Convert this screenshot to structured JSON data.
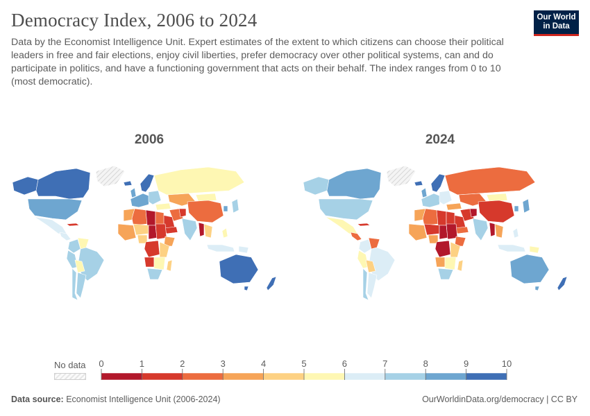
{
  "header": {
    "title": "Democracy Index, 2006 to 2024",
    "subtitle": "Data by the Economist Intelligence Unit. Expert estimates of the extent to which citizens can choose their political leaders in free and fair elections, enjoy civil liberties, prefer democracy over other political systems, can and do participate in politics, and have a functioning government that acts on their behalf. The index ranges from 0 to 10 (most democratic).",
    "logo_line1": "Our World",
    "logo_line2": "in Data"
  },
  "maps": [
    {
      "year": "2006"
    },
    {
      "year": "2024"
    }
  ],
  "legend": {
    "no_data_label": "No data",
    "ticks": [
      "0",
      "1",
      "2",
      "3",
      "4",
      "5",
      "6",
      "7",
      "8",
      "9",
      "10"
    ],
    "bins": [
      {
        "from": 0,
        "to": 1,
        "color": "#b2182b"
      },
      {
        "from": 1,
        "to": 2,
        "color": "#d6392c"
      },
      {
        "from": 2,
        "to": 3,
        "color": "#ec6c3f"
      },
      {
        "from": 3,
        "to": 4,
        "color": "#f6a458"
      },
      {
        "from": 4,
        "to": 5,
        "color": "#fdd183"
      },
      {
        "from": 5,
        "to": 6,
        "color": "#fef7b3"
      },
      {
        "from": 6,
        "to": 7,
        "color": "#dcedf6"
      },
      {
        "from": 7,
        "to": 8,
        "color": "#a6d1e6"
      },
      {
        "from": 8,
        "to": 9,
        "color": "#6ea6d0"
      },
      {
        "from": 9,
        "to": 10,
        "color": "#3f6fb5"
      }
    ]
  },
  "footer": {
    "source_label": "Data source:",
    "source_text": "Economist Intelligence Unit (2006-2024)",
    "url": "OurWorldinData.org/democracy | CC BY"
  }
}
